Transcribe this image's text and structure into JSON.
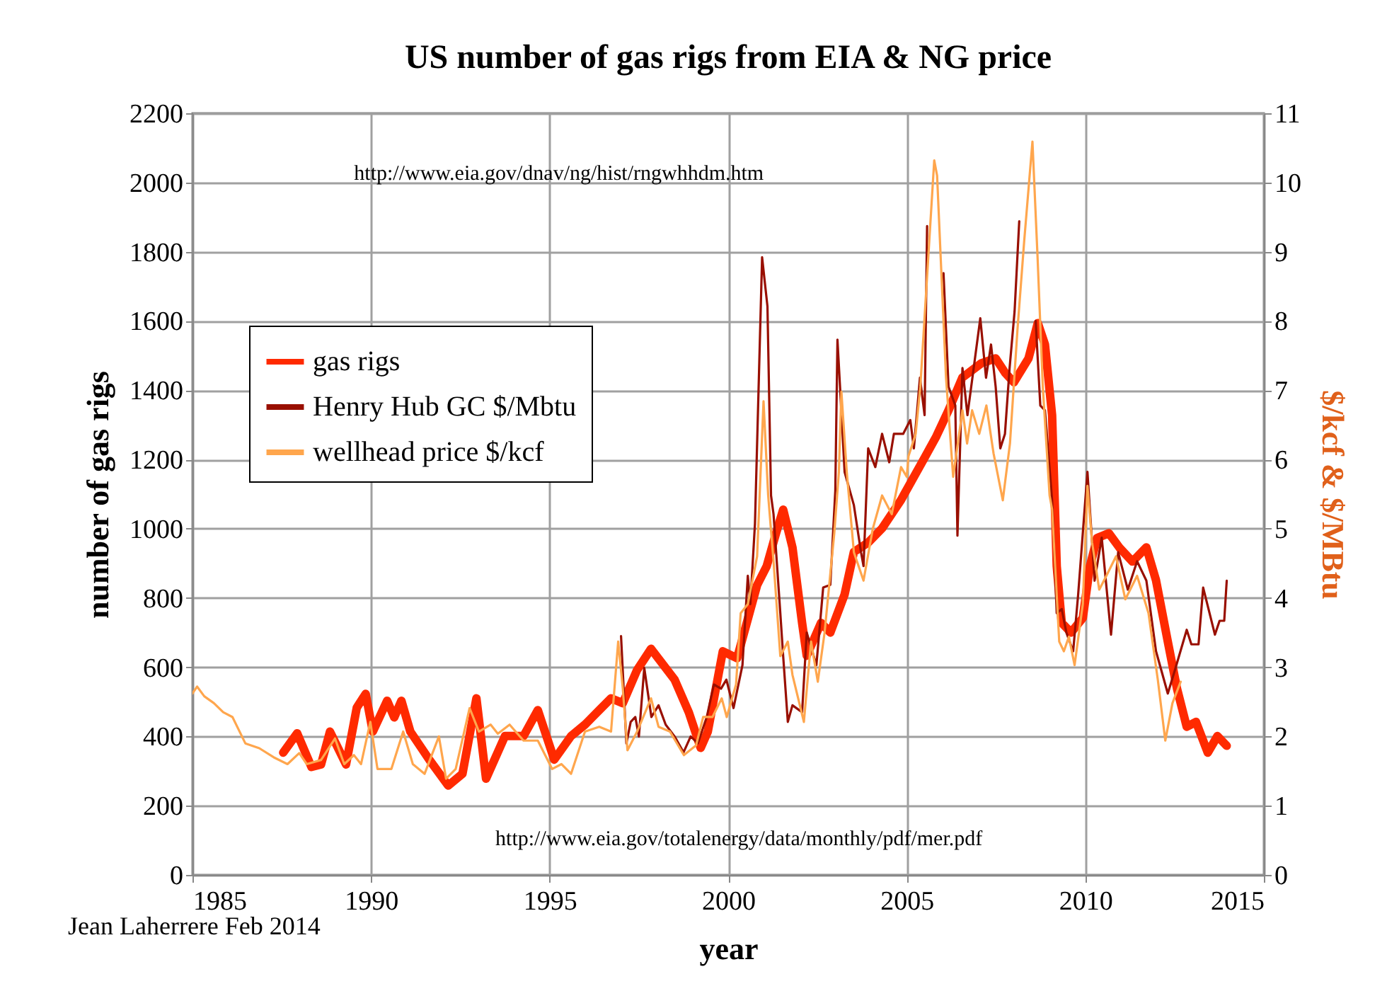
{
  "chart_data": {
    "type": "line",
    "title": "US number of gas rigs from EIA & NG price",
    "xlabel": "year",
    "ylabel": "number of gas rigs",
    "y2label": "$/kcf & $/MBtu",
    "xlim": [
      1985,
      2015
    ],
    "xticks": [
      1985,
      1990,
      1995,
      2000,
      2005,
      2010,
      2015
    ],
    "ylim": [
      0,
      2200
    ],
    "yticks": [
      0,
      200,
      400,
      600,
      800,
      1000,
      1200,
      1400,
      1600,
      1800,
      2000,
      2200
    ],
    "y2lim": [
      0,
      11
    ],
    "y2ticks": [
      0,
      1,
      2,
      3,
      4,
      5,
      6,
      7,
      8,
      9,
      10,
      11
    ],
    "grid": true,
    "legend": "top left",
    "annotations": [
      "http://www.eia.gov/dnav/ng/hist/rngwhhdm.htm",
      "http://www.eia.gov/totalenergy/data/monthly/pdf/mer.pdf",
      "Jean Laherrere Feb 2014"
    ],
    "series": [
      {
        "name": "gas rigs",
        "color": "#ff2a00",
        "x": [
          1987.54,
          1987.93,
          1988.33,
          1988.6,
          1988.85,
          1989.3,
          1989.6,
          1989.85,
          1990.05,
          1990.45,
          1990.65,
          1990.85,
          1991.1,
          1991.63,
          1992.16,
          1992.56,
          1992.95,
          1993.22,
          1993.75,
          1994.27,
          1994.67,
          1995.13,
          1995.6,
          1996.0,
          1996.39,
          1996.72,
          1997.05,
          1997.45,
          1997.84,
          1998.5,
          1998.9,
          1999.23,
          1999.43,
          1999.85,
          2000.25,
          2000.81,
          2001.08,
          2001.34,
          2001.54,
          2001.8,
          2002.07,
          2002.2,
          2002.6,
          2002.86,
          2003.26,
          2003.52,
          2003.92,
          2004.31,
          2004.84,
          2005.5,
          2005.83,
          2006.17,
          2006.56,
          2007.09,
          2007.49,
          2007.75,
          2008.0,
          2008.41,
          2008.67,
          2008.87,
          2009.07,
          2009.2,
          2009.34,
          2009.6,
          2009.93,
          2010.13,
          2010.33,
          2010.66,
          2010.95,
          2011.32,
          2011.71,
          2011.98,
          2012.31,
          2012.57,
          2012.84,
          2013.1,
          2013.43,
          2013.7,
          2013.96
        ],
        "values": [
          353,
          409,
          312,
          319,
          414,
          319,
          483,
          523,
          414,
          503,
          455,
          503,
          414,
          333,
          258,
          292,
          510,
          278,
          401,
          401,
          476,
          333,
          401,
          435,
          476,
          510,
          496,
          592,
          653,
          564,
          469,
          367,
          414,
          646,
          626,
          837,
          892,
          987,
          1055,
          946,
          728,
          633,
          728,
          700,
          810,
          933,
          960,
          1001,
          1083,
          1205,
          1267,
          1342,
          1437,
          1478,
          1492,
          1451,
          1423,
          1492,
          1594,
          1532,
          1328,
          892,
          728,
          700,
          742,
          892,
          973,
          987,
          946,
          905,
          946,
          851,
          674,
          537,
          428,
          442,
          353,
          401,
          373
        ]
      },
      {
        "name": "Henry Hub GC $/Mbtu",
        "color": "#990f00",
        "axis": "y2",
        "x": [
          1997.0,
          1997.15,
          1997.27,
          1997.4,
          1997.5,
          1997.65,
          1997.85,
          1998.05,
          1998.25,
          1998.5,
          1998.75,
          1998.95,
          1999.15,
          1999.4,
          1999.6,
          1999.8,
          1999.95,
          2000.15,
          2000.4,
          2000.55,
          2000.62,
          2000.75,
          2000.95,
          2001.1,
          2001.2,
          2001.27,
          2001.46,
          2001.54,
          2001.67,
          2001.8,
          2002.07,
          2002.2,
          2002.47,
          2002.66,
          2002.86,
          2003.0,
          2003.06,
          2003.19,
          2003.26,
          2003.52,
          2003.72,
          2003.79,
          2003.92,
          2004.12,
          2004.31,
          2004.51,
          2004.64,
          2004.9,
          2005.1,
          2005.2,
          2005.37,
          2005.5,
          2005.57,
          2005.75,
          2005.9,
          2006.03,
          2006.17,
          2006.36,
          2006.42,
          2006.56,
          2006.7,
          2007.06,
          2007.22,
          2007.36,
          2007.49,
          2007.62,
          2007.75,
          2007.88,
          2008.02,
          2008.15,
          2008.35,
          2008.5,
          2008.61,
          2008.74,
          2008.87,
          2009.07,
          2009.2,
          2009.34,
          2009.47,
          2009.66,
          2009.8,
          2010.06,
          2010.26,
          2010.46,
          2010.72,
          2010.92,
          2011.19,
          2011.45,
          2011.71,
          2011.98,
          2012.31,
          2012.51,
          2012.84,
          2012.97,
          2013.17,
          2013.3,
          2013.63,
          2013.76,
          2013.89,
          2013.96
        ],
        "values": [
          3.45,
          1.9,
          2.21,
          2.28,
          2.0,
          2.99,
          2.28,
          2.45,
          2.17,
          2.0,
          1.77,
          2.0,
          1.9,
          2.28,
          2.75,
          2.69,
          2.82,
          2.41,
          3.03,
          4.32,
          3.91,
          5.07,
          8.92,
          8.21,
          5.48,
          5.21,
          3.78,
          3.16,
          2.21,
          2.45,
          2.35,
          3.5,
          3.03,
          4.15,
          4.19,
          5.55,
          7.73,
          6.5,
          5.82,
          5.34,
          4.66,
          4.46,
          6.16,
          5.89,
          6.37,
          5.96,
          6.37,
          6.37,
          6.57,
          6.16,
          7.18,
          6.64,
          9.37,
          null,
          null,
          8.69,
          7.05,
          6.78,
          4.9,
          7.32,
          6.64,
          8.04,
          7.18,
          7.66,
          7.05,
          6.16,
          6.37,
          7.32,
          8.14,
          9.44,
          null,
          null,
          8.0,
          6.78,
          6.71,
          5.41,
          3.78,
          3.84,
          3.5,
          3.23,
          4.05,
          5.82,
          4.25,
          4.87,
          3.47,
          4.66,
          4.12,
          4.53,
          4.25,
          3.23,
          2.62,
          2.96,
          3.54,
          3.33,
          3.33,
          4.15,
          3.47,
          3.67,
          3.67,
          4.25
        ]
      },
      {
        "name": "wellhead price $/kcf",
        "color": "#ffa64d",
        "axis": "y2",
        "x": [
          1985.0,
          1985.13,
          1985.33,
          1985.6,
          1985.86,
          1986.12,
          1986.48,
          1986.87,
          1987.27,
          1987.66,
          1987.99,
          1988.2,
          1988.6,
          1988.99,
          1989.25,
          1989.52,
          1989.72,
          1989.98,
          1990.18,
          1990.57,
          1990.9,
          1991.17,
          1991.5,
          1991.9,
          1992.1,
          1992.37,
          1992.76,
          1993.02,
          1993.35,
          1993.55,
          1993.88,
          1994.27,
          1994.67,
          1995.07,
          1995.33,
          1995.6,
          1995.99,
          1996.39,
          1996.72,
          1996.92,
          1997.05,
          1997.18,
          1997.45,
          1997.84,
          1998.05,
          1998.37,
          1998.76,
          1999.1,
          1999.3,
          1999.56,
          1999.82,
          1999.96,
          2000.22,
          2000.35,
          2000.55,
          2000.81,
          2000.99,
          2001.12,
          2001.27,
          2001.46,
          2001.67,
          2001.8,
          2002.12,
          2002.32,
          2002.51,
          2002.7,
          2002.97,
          2003.1,
          2003.17,
          2003.32,
          2003.52,
          2003.79,
          2004.05,
          2004.31,
          2004.58,
          2004.84,
          2005.0,
          2005.05,
          2005.12,
          2005.25,
          2005.38,
          2005.77,
          2005.85,
          2005.97,
          2006.1,
          2006.3,
          2006.56,
          2006.69,
          2006.83,
          2007.03,
          2007.23,
          2007.43,
          2007.69,
          2007.89,
          2008.1,
          2008.29,
          2008.52,
          2008.66,
          2008.81,
          2009.0,
          2009.07,
          2009.27,
          2009.4,
          2009.54,
          2009.7,
          2009.93,
          2010.06,
          2010.19,
          2010.39,
          2010.59,
          2010.86,
          2011.12,
          2011.45,
          2011.77,
          2012.03,
          2012.24,
          2012.44,
          2012.67
        ],
        "values": [
          2.62,
          2.72,
          2.58,
          2.48,
          2.35,
          2.28,
          1.9,
          1.83,
          1.7,
          1.6,
          1.76,
          1.6,
          1.66,
          1.97,
          1.6,
          1.73,
          1.6,
          2.21,
          1.53,
          1.53,
          2.07,
          1.6,
          1.46,
          2.0,
          1.39,
          1.53,
          2.41,
          2.07,
          2.17,
          2.04,
          2.17,
          1.94,
          1.94,
          1.53,
          1.6,
          1.46,
          2.07,
          2.14,
          2.07,
          3.37,
          2.69,
          1.8,
          2.07,
          2.55,
          2.14,
          2.07,
          1.73,
          1.87,
          2.28,
          2.28,
          2.55,
          2.28,
          2.75,
          3.78,
          3.91,
          4.6,
          6.84,
          5.48,
          4.53,
          3.16,
          3.37,
          2.89,
          2.21,
          3.37,
          2.79,
          3.5,
          4.93,
          5.82,
          6.98,
          5.82,
          4.66,
          4.25,
          5.0,
          5.48,
          5.21,
          5.89,
          5.75,
          6.05,
          6.16,
          6.37,
          7.05,
          10.32,
          10.1,
          8.69,
          7.18,
          5.75,
          6.71,
          6.23,
          6.71,
          6.37,
          6.78,
          6.09,
          5.41,
          6.23,
          7.87,
          9.16,
          10.59,
          8.96,
          7.05,
          5.48,
          5.28,
          3.37,
          3.23,
          3.44,
          3.03,
          3.91,
          5.62,
          4.8,
          4.12,
          4.32,
          4.6,
          3.98,
          4.32,
          3.78,
          2.82,
          1.94,
          2.48,
          2.79
        ]
      }
    ]
  }
}
